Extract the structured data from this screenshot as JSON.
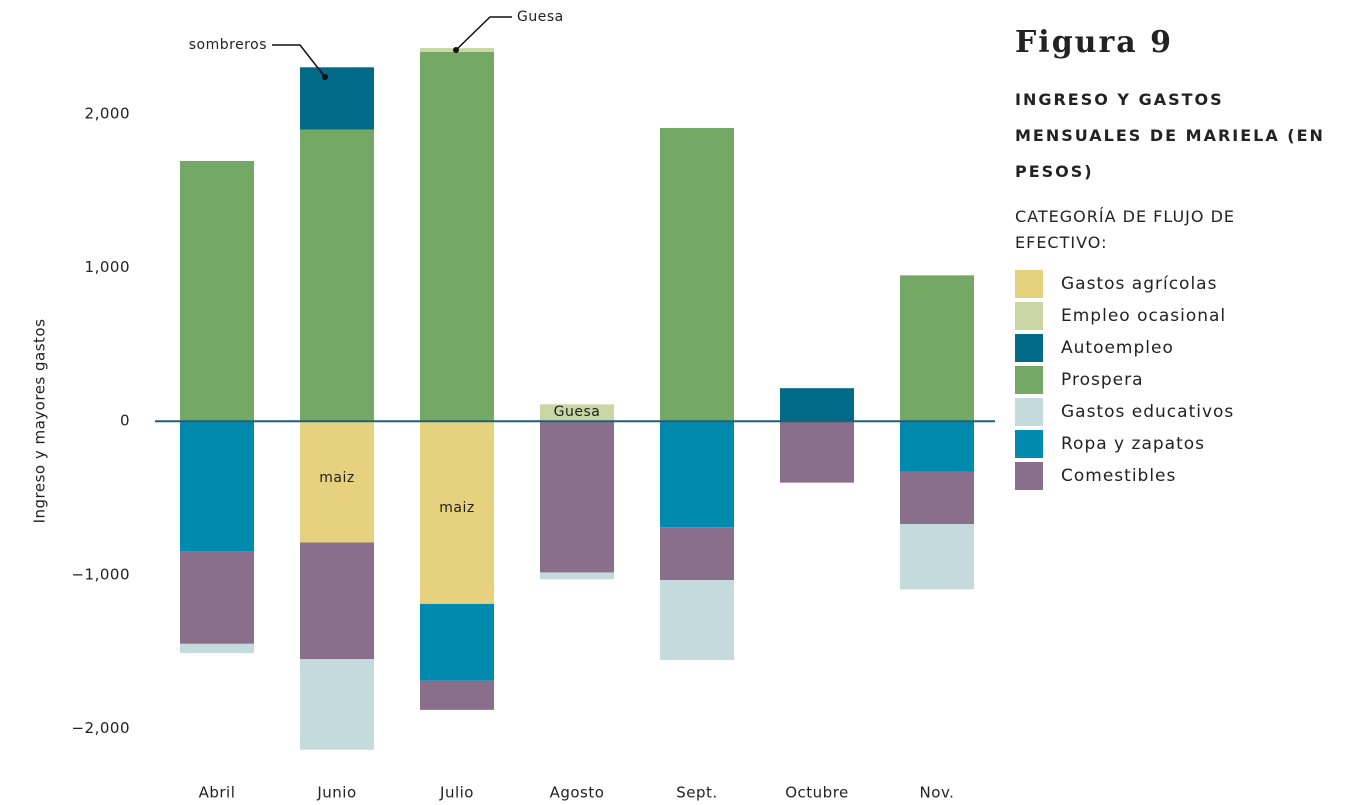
{
  "chart_data": {
    "type": "stacked_bar",
    "title": "Figura 9",
    "subtitle": "INGRESO Y GASTOS MENSUALES DE MARIELA (EN PESOS)",
    "legend_title": "CATEGORÍA DE FLUJO DE EFECTIVO:",
    "y_label": "Ingreso y mayores gastos",
    "categories": [
      "Abril",
      "Junio",
      "Julio",
      "Agosto",
      "Sept.",
      "Octubre",
      "Nov."
    ],
    "series": [
      {
        "name": "Gastos agrícolas",
        "color": "#e6d17e",
        "values": [
          null,
          -790,
          -1190,
          null,
          null,
          null,
          null
        ]
      },
      {
        "name": "Empleo ocasional",
        "color": "#c9d6a3",
        "values": [
          null,
          null,
          25,
          110,
          null,
          null,
          null
        ]
      },
      {
        "name": "Autoempleo",
        "color": "#006a87",
        "values": [
          null,
          405,
          null,
          null,
          null,
          215,
          null
        ]
      },
      {
        "name": "Prospera",
        "color": "#73a865",
        "values": [
          1695,
          1900,
          2405,
          null,
          1910,
          null,
          950
        ]
      },
      {
        "name": "Gastos educativos",
        "color": "#c5dadc",
        "values": [
          -60,
          -590,
          null,
          -45,
          -520,
          null,
          -425
        ]
      },
      {
        "name": "Ropa y zapatos",
        "color": "#008aad",
        "values": [
          -850,
          null,
          -500,
          null,
          -690,
          null,
          -330
        ]
      },
      {
        "name": "Comestibles",
        "color": "#8a6f8c",
        "values": [
          -600,
          -760,
          -190,
          -985,
          -345,
          -400,
          -340
        ]
      }
    ],
    "annotations": [
      "sombreros",
      "Guesa",
      "Guesa",
      "maiz",
      "maiz"
    ],
    "ylim": [
      -2200,
      2600
    ],
    "yticks": [
      {
        "value": -2000,
        "label": "−2,000"
      },
      {
        "value": -1000,
        "label": "−1,000"
      },
      0,
      {
        "value": 1000,
        "label": "1,000"
      },
      {
        "value": 2000,
        "label": "2,000"
      }
    ]
  }
}
